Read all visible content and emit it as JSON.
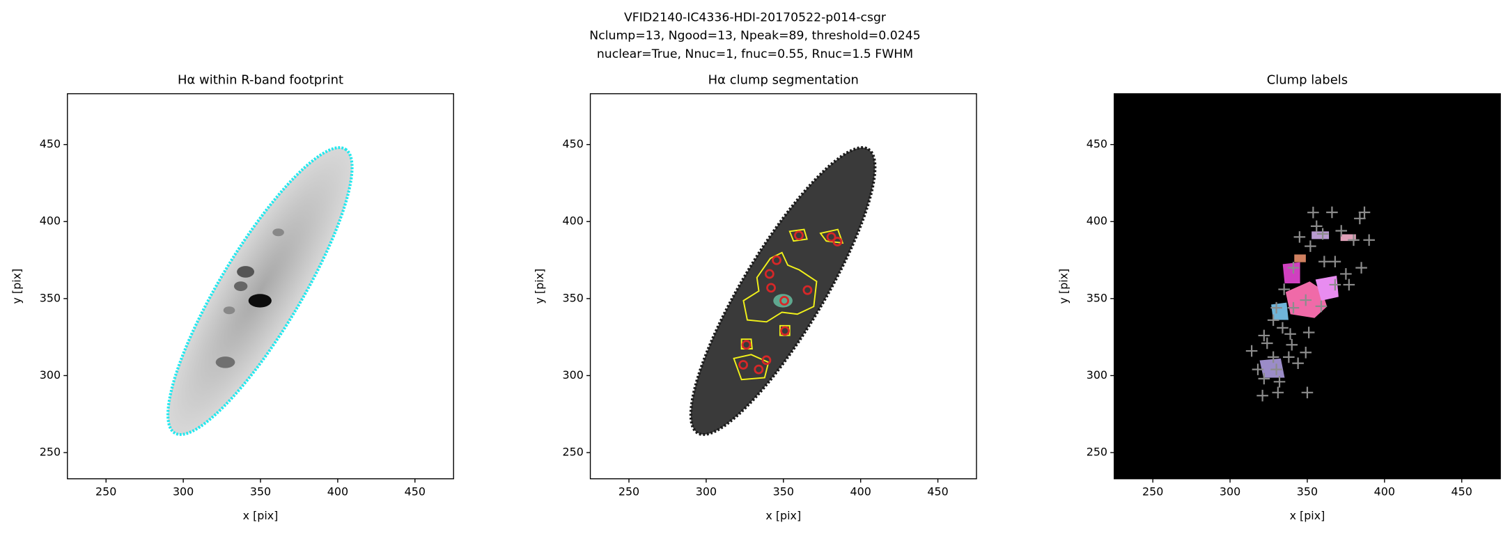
{
  "title": [
    "VFID2140-IC4336-HDI-20170522-p014-csgr",
    "Nclump=13, Ngood=13, Npeak=89, threshold=0.0245",
    "nuclear=True, Nnuc=1, fnuc=0.55, Rnuc=1.5 FWHM"
  ],
  "chart_data": [
    {
      "type": "image",
      "title": "Hα within R-band footprint",
      "xlabel": "x [pix]",
      "ylabel": "y [pix]",
      "xlim": [
        225,
        475
      ],
      "ylim": [
        233,
        483
      ],
      "xticks": [
        250,
        300,
        350,
        400,
        450
      ],
      "yticks": [
        250,
        300,
        350,
        400,
        450
      ]
    },
    {
      "type": "scatter",
      "title": "Hα clump segmentation",
      "xlabel": "x [pix]",
      "ylabel": "y [pix]",
      "marker": "circle",
      "color": "#d62728",
      "xlim": [
        225,
        475
      ],
      "ylim": [
        233,
        483
      ],
      "xticks": [
        250,
        300,
        350,
        400,
        450
      ],
      "yticks": [
        250,
        300,
        350,
        400,
        450
      ],
      "x": [
        345.6,
        360,
        381,
        385,
        341,
        342,
        365.6,
        350.6,
        351,
        326,
        324,
        334,
        339
      ],
      "y": [
        374.9,
        391,
        390,
        387,
        366,
        357,
        355.5,
        348.6,
        329,
        320,
        307,
        304,
        310
      ]
    },
    {
      "type": "scatter",
      "title": "Clump labels",
      "xlabel": "x [pix]",
      "ylabel": "y [pix]",
      "marker": "plus",
      "color": "#8c8c8c",
      "xlim": [
        225,
        475
      ],
      "ylim": [
        233,
        483
      ],
      "xticks": [
        250,
        300,
        350,
        400,
        450
      ],
      "yticks": [
        250,
        300,
        350,
        400,
        450
      ],
      "x": [
        353.8,
        366,
        387,
        384,
        356,
        372,
        345,
        360,
        380,
        390,
        352,
        368,
        361,
        385,
        341,
        375,
        377,
        368,
        335,
        349,
        359,
        341,
        330,
        328,
        351,
        339,
        334,
        322,
        324,
        340,
        349,
        314,
        328,
        338,
        318,
        330,
        344,
        322,
        332,
        350,
        321,
        331
      ],
      "y": [
        405.9,
        406,
        406,
        402,
        397,
        394,
        390,
        392,
        388,
        388,
        384,
        374,
        374,
        370,
        370,
        366,
        359,
        359,
        356,
        349,
        345,
        344,
        344,
        336,
        328,
        327,
        331,
        326,
        321,
        320,
        315,
        316,
        312,
        312,
        304,
        304,
        308,
        298,
        296,
        289,
        287,
        289
      ]
    }
  ]
}
